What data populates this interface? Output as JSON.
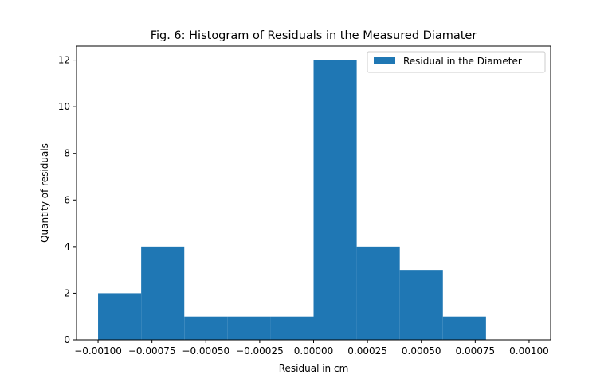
{
  "chart_data": {
    "type": "bar",
    "title": "Fig. 6: Histogram of Residuals in the Measured Diamater",
    "xlabel": "Residual in cm",
    "ylabel": "Quantity of residuals",
    "xlim": [
      -0.0011,
      0.0011
    ],
    "ylim": [
      0,
      12.6
    ],
    "xticks": [
      -0.001,
      -0.00075,
      -0.0005,
      -0.00025,
      0,
      0.00025,
      0.0005,
      0.00075,
      0.001
    ],
    "xtick_labels": [
      "−0.00100",
      "−0.00075",
      "−0.00050",
      "−0.00025",
      "0.00000",
      "0.00025",
      "0.00050",
      "0.00075",
      "0.00100"
    ],
    "yticks": [
      0,
      2,
      4,
      6,
      8,
      10,
      12
    ],
    "ytick_labels": [
      "0",
      "2",
      "4",
      "6",
      "8",
      "10",
      "12"
    ],
    "bin_edges": [
      -0.001,
      -0.0008,
      -0.0006,
      -0.0004,
      -0.0002,
      0,
      0.0002,
      0.0004,
      0.0006,
      0.0008
    ],
    "series": [
      {
        "name": "Residual in the Diameter",
        "values": [
          2,
          4,
          1,
          1,
          1,
          12,
          4,
          3,
          1
        ],
        "color": "#1f77b4"
      }
    ],
    "legend": {
      "position": "top-right"
    },
    "grid": false
  }
}
